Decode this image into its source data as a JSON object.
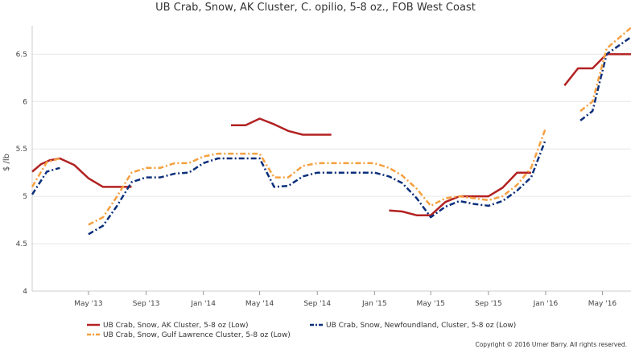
{
  "chart_data": {
    "type": "line",
    "title": "UB Crab, Snow, AK Cluster, C. opilio, 5-8 oz., FOB West Coast",
    "ylabel": "$ /lb",
    "xlabel": "",
    "ylim": [
      4,
      6.8
    ],
    "yticks": [
      4,
      4.5,
      5,
      5.5,
      6,
      6.5
    ],
    "ytick_labels": [
      "4",
      "4.5",
      "5",
      "5.5",
      "6",
      "6.5"
    ],
    "xlim": [
      "2013-01-01",
      "2016-07-01"
    ],
    "xticks": [
      {
        "date": "2013-05-01",
        "label": "May '13"
      },
      {
        "date": "2013-09-01",
        "label": "Sep '13"
      },
      {
        "date": "2014-01-01",
        "label": "Jan '14"
      },
      {
        "date": "2014-05-01",
        "label": "May '14"
      },
      {
        "date": "2014-09-01",
        "label": "Sep '14"
      },
      {
        "date": "2015-01-01",
        "label": "Jan '15"
      },
      {
        "date": "2015-05-01",
        "label": "May '15"
      },
      {
        "date": "2015-09-01",
        "label": "Sep '15"
      },
      {
        "date": "2016-01-01",
        "label": "Jan '16"
      },
      {
        "date": "2016-05-01",
        "label": "May '16"
      }
    ],
    "grid": "horizontal",
    "legend_position": "bottom",
    "series": [
      {
        "name": "UB Crab, Snow, AK Cluster, 5-8 oz (Low)",
        "color": "#b22222",
        "style": "solid",
        "segments": [
          [
            [
              "2013-01-01",
              5.26
            ],
            [
              "2013-01-20",
              5.34
            ],
            [
              "2013-02-07",
              5.38
            ],
            [
              "2013-03-01",
              5.4
            ],
            [
              "2013-04-01",
              5.33
            ],
            [
              "2013-05-01",
              5.19
            ],
            [
              "2013-06-01",
              5.1
            ],
            [
              "2013-07-01",
              5.1
            ],
            [
              "2013-08-01",
              5.1
            ]
          ],
          [
            [
              "2014-03-01",
              5.75
            ],
            [
              "2014-04-01",
              5.75
            ],
            [
              "2014-05-01",
              5.82
            ],
            [
              "2014-06-01",
              5.76
            ],
            [
              "2014-07-01",
              5.69
            ],
            [
              "2014-08-01",
              5.65
            ],
            [
              "2014-09-01",
              5.65
            ],
            [
              "2014-10-01",
              5.65
            ]
          ],
          [
            [
              "2015-02-01",
              4.85
            ],
            [
              "2015-03-01",
              4.84
            ],
            [
              "2015-04-01",
              4.8
            ],
            [
              "2015-05-01",
              4.8
            ],
            [
              "2015-06-01",
              4.94
            ],
            [
              "2015-07-01",
              5.0
            ],
            [
              "2015-08-01",
              5.0
            ],
            [
              "2015-09-01",
              5.0
            ],
            [
              "2015-10-01",
              5.09
            ],
            [
              "2015-11-01",
              5.25
            ],
            [
              "2015-12-01",
              5.25
            ]
          ],
          [
            [
              "2016-02-10",
              6.17
            ],
            [
              "2016-03-10",
              6.35
            ],
            [
              "2016-04-10",
              6.35
            ],
            [
              "2016-05-10",
              6.5
            ],
            [
              "2016-06-10",
              6.5
            ],
            [
              "2016-07-01",
              6.5
            ]
          ]
        ]
      },
      {
        "name": "UB Crab, Snow, Newfoundland, Cluster, 5-8 oz (Low)",
        "color": "#0b2f7a",
        "style": "dashdot",
        "segments": [
          [
            [
              "2013-01-01",
              5.02
            ],
            [
              "2013-02-01",
              5.26
            ],
            [
              "2013-03-01",
              5.3
            ]
          ],
          [
            [
              "2013-05-01",
              4.6
            ],
            [
              "2013-06-01",
              4.69
            ],
            [
              "2013-07-01",
              4.9
            ],
            [
              "2013-08-01",
              5.15
            ],
            [
              "2013-09-01",
              5.2
            ],
            [
              "2013-10-01",
              5.2
            ],
            [
              "2013-11-01",
              5.24
            ],
            [
              "2013-12-01",
              5.25
            ],
            [
              "2014-01-01",
              5.35
            ],
            [
              "2014-02-01",
              5.4
            ],
            [
              "2014-03-01",
              5.4
            ],
            [
              "2014-04-01",
              5.4
            ],
            [
              "2014-05-01",
              5.4
            ],
            [
              "2014-06-01",
              5.1
            ],
            [
              "2014-07-01",
              5.11
            ],
            [
              "2014-08-01",
              5.21
            ],
            [
              "2014-09-01",
              5.25
            ],
            [
              "2014-10-01",
              5.25
            ],
            [
              "2014-11-01",
              5.25
            ],
            [
              "2014-12-01",
              5.25
            ],
            [
              "2015-01-01",
              5.25
            ],
            [
              "2015-02-01",
              5.21
            ],
            [
              "2015-03-01",
              5.14
            ],
            [
              "2015-04-01",
              4.98
            ],
            [
              "2015-05-01",
              4.78
            ],
            [
              "2015-06-01",
              4.89
            ],
            [
              "2015-07-01",
              4.95
            ],
            [
              "2015-08-01",
              4.92
            ],
            [
              "2015-09-01",
              4.9
            ],
            [
              "2015-10-01",
              4.95
            ],
            [
              "2015-11-01",
              5.06
            ],
            [
              "2015-12-01",
              5.2
            ],
            [
              "2016-01-01",
              5.6
            ]
          ],
          [
            [
              "2016-03-15",
              5.8
            ],
            [
              "2016-04-10",
              5.9
            ],
            [
              "2016-05-10",
              6.5
            ],
            [
              "2016-07-01",
              6.68
            ]
          ]
        ]
      },
      {
        "name": "UB Crab, Snow, Gulf Lawrence Cluster, 5-8 oz (Low)",
        "color": "#f5a040",
        "style": "dashdot",
        "segments": [
          [
            [
              "2013-01-01",
              5.1
            ],
            [
              "2013-02-01",
              5.36
            ],
            [
              "2013-03-01",
              5.4
            ]
          ],
          [
            [
              "2013-05-01",
              4.7
            ],
            [
              "2013-06-01",
              4.78
            ],
            [
              "2013-07-01",
              5.0
            ],
            [
              "2013-08-01",
              5.25
            ],
            [
              "2013-09-01",
              5.3
            ],
            [
              "2013-10-01",
              5.3
            ],
            [
              "2013-11-01",
              5.35
            ],
            [
              "2013-12-01",
              5.35
            ],
            [
              "2014-01-01",
              5.42
            ],
            [
              "2014-02-01",
              5.45
            ],
            [
              "2014-03-01",
              5.45
            ],
            [
              "2014-04-01",
              5.45
            ],
            [
              "2014-05-01",
              5.45
            ],
            [
              "2014-06-01",
              5.2
            ],
            [
              "2014-07-01",
              5.2
            ],
            [
              "2014-08-01",
              5.32
            ],
            [
              "2014-09-01",
              5.35
            ],
            [
              "2014-10-01",
              5.35
            ],
            [
              "2014-11-01",
              5.35
            ],
            [
              "2014-12-01",
              5.35
            ],
            [
              "2015-01-01",
              5.35
            ],
            [
              "2015-02-01",
              5.3
            ],
            [
              "2015-03-01",
              5.22
            ],
            [
              "2015-04-01",
              5.08
            ],
            [
              "2015-05-01",
              4.9
            ],
            [
              "2015-06-01",
              4.98
            ],
            [
              "2015-07-01",
              5.0
            ],
            [
              "2015-08-01",
              4.98
            ],
            [
              "2015-09-01",
              4.96
            ],
            [
              "2015-10-01",
              5.0
            ],
            [
              "2015-11-01",
              5.12
            ],
            [
              "2015-12-01",
              5.3
            ],
            [
              "2016-01-01",
              5.72
            ]
          ],
          [
            [
              "2016-03-15",
              5.9
            ],
            [
              "2016-04-10",
              6.0
            ],
            [
              "2016-05-10",
              6.56
            ],
            [
              "2016-07-01",
              6.78
            ]
          ]
        ]
      }
    ],
    "copyright": "Copyright © 2016 Urner Barry. All rights reserved."
  }
}
